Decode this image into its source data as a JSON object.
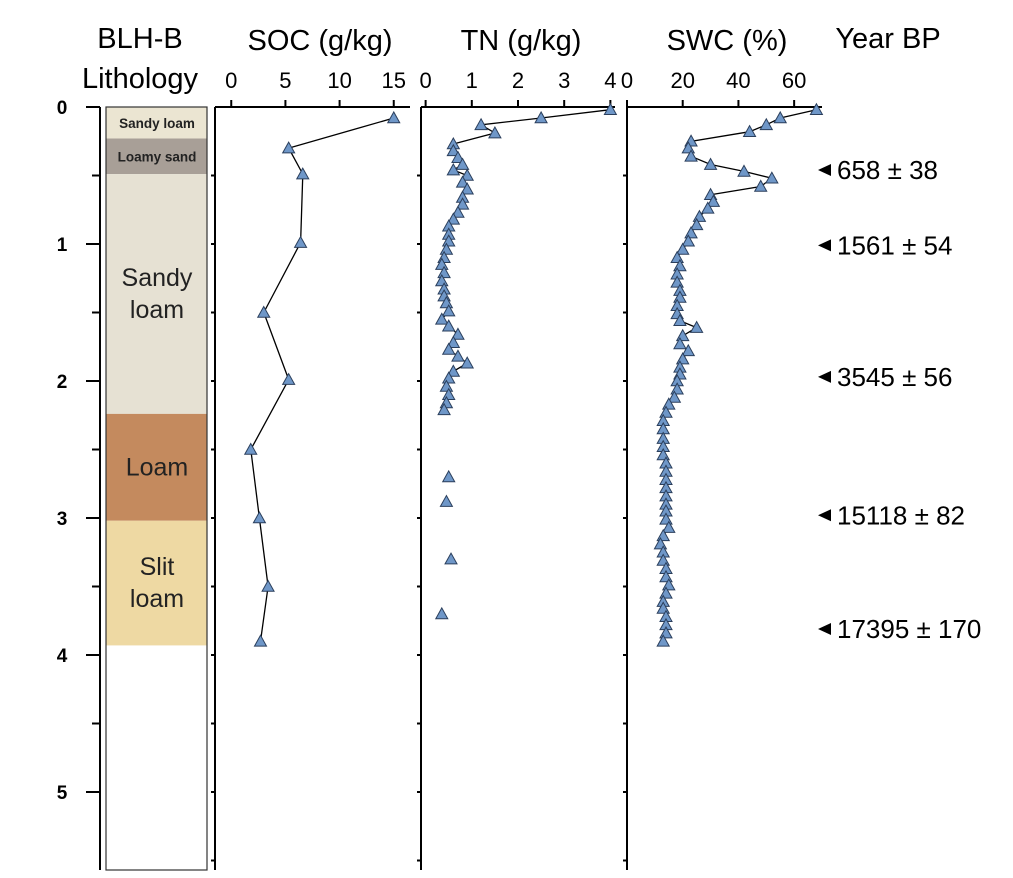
{
  "chart_data": {
    "type": "scatter",
    "depth_axis": {
      "ticks": [
        "0",
        "1",
        "2",
        "3",
        "4",
        "5"
      ],
      "range": [
        0,
        5.6
      ],
      "reversed": true
    },
    "lithology": {
      "header_lines": [
        "BLH-B",
        "Lithology"
      ],
      "units": [
        {
          "name": "Sandy loam",
          "top": 0.0,
          "bottom": 0.23,
          "color": "#ebe5d2",
          "style": "small"
        },
        {
          "name": "Loamy sand",
          "top": 0.23,
          "bottom": 0.49,
          "color": "#a89f97",
          "style": "small"
        },
        {
          "name": "Sandy loam",
          "lines": [
            "Sandy",
            "loam"
          ],
          "top": 0.49,
          "bottom": 2.24,
          "color": "#e6e1d3",
          "style": "big"
        },
        {
          "name": "Loam",
          "lines": [
            "Loam"
          ],
          "top": 2.24,
          "bottom": 3.02,
          "color": "#c48a5e",
          "style": "big"
        },
        {
          "name": "Slit loam",
          "lines": [
            "Slit",
            "loam"
          ],
          "top": 3.02,
          "bottom": 3.93,
          "color": "#eed9a3",
          "style": "big"
        }
      ]
    },
    "panels": [
      {
        "title": "SOC (g/kg)",
        "xlim": [
          -1.5,
          16.5
        ],
        "xticks": [
          0,
          5,
          10,
          15
        ],
        "xticklabels": [
          "0",
          "5",
          "10",
          "15"
        ],
        "connected": true,
        "points": [
          [
            15.0,
            0.08
          ],
          [
            5.3,
            0.3
          ],
          [
            6.6,
            0.49
          ],
          [
            6.4,
            0.99
          ],
          [
            3.0,
            1.5
          ],
          [
            5.3,
            1.99
          ],
          [
            1.8,
            2.5
          ],
          [
            2.6,
            3.0
          ],
          [
            3.4,
            3.5
          ],
          [
            2.7,
            3.9
          ]
        ]
      },
      {
        "title": "TN (g/kg)",
        "xlim": [
          -0.1,
          4.1
        ],
        "xticks": [
          0,
          1,
          2,
          3,
          4
        ],
        "xticklabels": [
          "0",
          "1",
          "2",
          "3",
          "4"
        ],
        "connected": true,
        "points": [
          [
            4.0,
            0.02
          ],
          [
            2.5,
            0.08
          ],
          [
            1.2,
            0.13
          ],
          [
            1.5,
            0.19
          ],
          [
            0.6,
            0.27
          ],
          [
            0.6,
            0.32
          ],
          [
            0.7,
            0.37
          ],
          [
            0.8,
            0.42
          ],
          [
            0.6,
            0.46
          ],
          [
            0.9,
            0.5
          ],
          [
            0.8,
            0.55
          ],
          [
            0.9,
            0.6
          ],
          [
            0.8,
            0.66
          ],
          [
            0.8,
            0.71
          ],
          [
            0.7,
            0.77
          ],
          [
            0.6,
            0.82
          ],
          [
            0.5,
            0.87
          ],
          [
            0.5,
            0.93
          ],
          [
            0.5,
            0.98
          ],
          [
            0.45,
            1.04
          ],
          [
            0.4,
            1.1
          ],
          [
            0.35,
            1.15
          ],
          [
            0.4,
            1.21
          ],
          [
            0.35,
            1.27
          ],
          [
            0.4,
            1.33
          ],
          [
            0.4,
            1.38
          ],
          [
            0.45,
            1.43
          ],
          [
            0.5,
            1.49
          ],
          [
            0.35,
            1.55
          ],
          [
            0.5,
            1.6
          ],
          [
            0.7,
            1.66
          ],
          [
            0.6,
            1.72
          ],
          [
            0.5,
            1.77
          ],
          [
            0.7,
            1.82
          ],
          [
            0.9,
            1.87
          ],
          [
            0.6,
            1.93
          ],
          [
            0.5,
            1.98
          ],
          [
            0.45,
            2.04
          ],
          [
            0.5,
            2.1
          ],
          [
            0.45,
            2.16
          ],
          [
            0.4,
            2.21
          ]
        ]
      },
      {
        "title": "SWC (%)",
        "xlim": [
          0,
          70
        ],
        "xticks": [
          0,
          20,
          40,
          60
        ],
        "xticklabels": [
          "0",
          "20",
          "40",
          "60"
        ],
        "connected": true,
        "points": [
          [
            68,
            0.02
          ],
          [
            55,
            0.08
          ],
          [
            50,
            0.13
          ],
          [
            44,
            0.18
          ],
          [
            23,
            0.25
          ],
          [
            22,
            0.3
          ],
          [
            23,
            0.36
          ],
          [
            30,
            0.42
          ],
          [
            42,
            0.47
          ],
          [
            52,
            0.52
          ],
          [
            48,
            0.58
          ],
          [
            30,
            0.64
          ],
          [
            31,
            0.69
          ],
          [
            29,
            0.74
          ],
          [
            26,
            0.8
          ],
          [
            25,
            0.86
          ],
          [
            23,
            0.92
          ],
          [
            22,
            0.98
          ],
          [
            20,
            1.04
          ],
          [
            18,
            1.1
          ],
          [
            19,
            1.16
          ],
          [
            18,
            1.22
          ],
          [
            18,
            1.28
          ],
          [
            19,
            1.34
          ],
          [
            19,
            1.39
          ],
          [
            18,
            1.45
          ],
          [
            18,
            1.51
          ],
          [
            19,
            1.56
          ],
          [
            25,
            1.61
          ],
          [
            20,
            1.67
          ],
          [
            19,
            1.73
          ],
          [
            22,
            1.78
          ],
          [
            20,
            1.84
          ],
          [
            19,
            1.9
          ],
          [
            19,
            1.95
          ],
          [
            18,
            2.0
          ],
          [
            18,
            2.06
          ],
          [
            17,
            2.12
          ],
          [
            15,
            2.17
          ],
          [
            14,
            2.23
          ],
          [
            13,
            2.29
          ],
          [
            13,
            2.35
          ],
          [
            13,
            2.42
          ],
          [
            13,
            2.48
          ],
          [
            13,
            2.54
          ],
          [
            14,
            2.6
          ],
          [
            14,
            2.66
          ],
          [
            14,
            2.72
          ],
          [
            14,
            2.78
          ],
          [
            14,
            2.84
          ],
          [
            14,
            2.9
          ],
          [
            14,
            2.95
          ],
          [
            14,
            3.01
          ],
          [
            15,
            3.07
          ],
          [
            13,
            3.13
          ],
          [
            12,
            3.19
          ],
          [
            13,
            3.25
          ],
          [
            13,
            3.31
          ],
          [
            14,
            3.37
          ],
          [
            14,
            3.43
          ],
          [
            15,
            3.49
          ],
          [
            14,
            3.55
          ],
          [
            13,
            3.61
          ],
          [
            13,
            3.66
          ],
          [
            14,
            3.72
          ],
          [
            14,
            3.78
          ],
          [
            14,
            3.84
          ],
          [
            13,
            3.9
          ]
        ]
      },
      {
        "title": "Year BP",
        "ages": [
          {
            "depth": 0.46,
            "label": "658 ± 38"
          },
          {
            "depth": 1.01,
            "label": "1561 ± 54"
          },
          {
            "depth": 1.97,
            "label": "3545 ± 56"
          },
          {
            "depth": 2.98,
            "label": "15118 ± 82"
          },
          {
            "depth": 3.81,
            "label": "17395 ± 170"
          }
        ]
      }
    ]
  }
}
